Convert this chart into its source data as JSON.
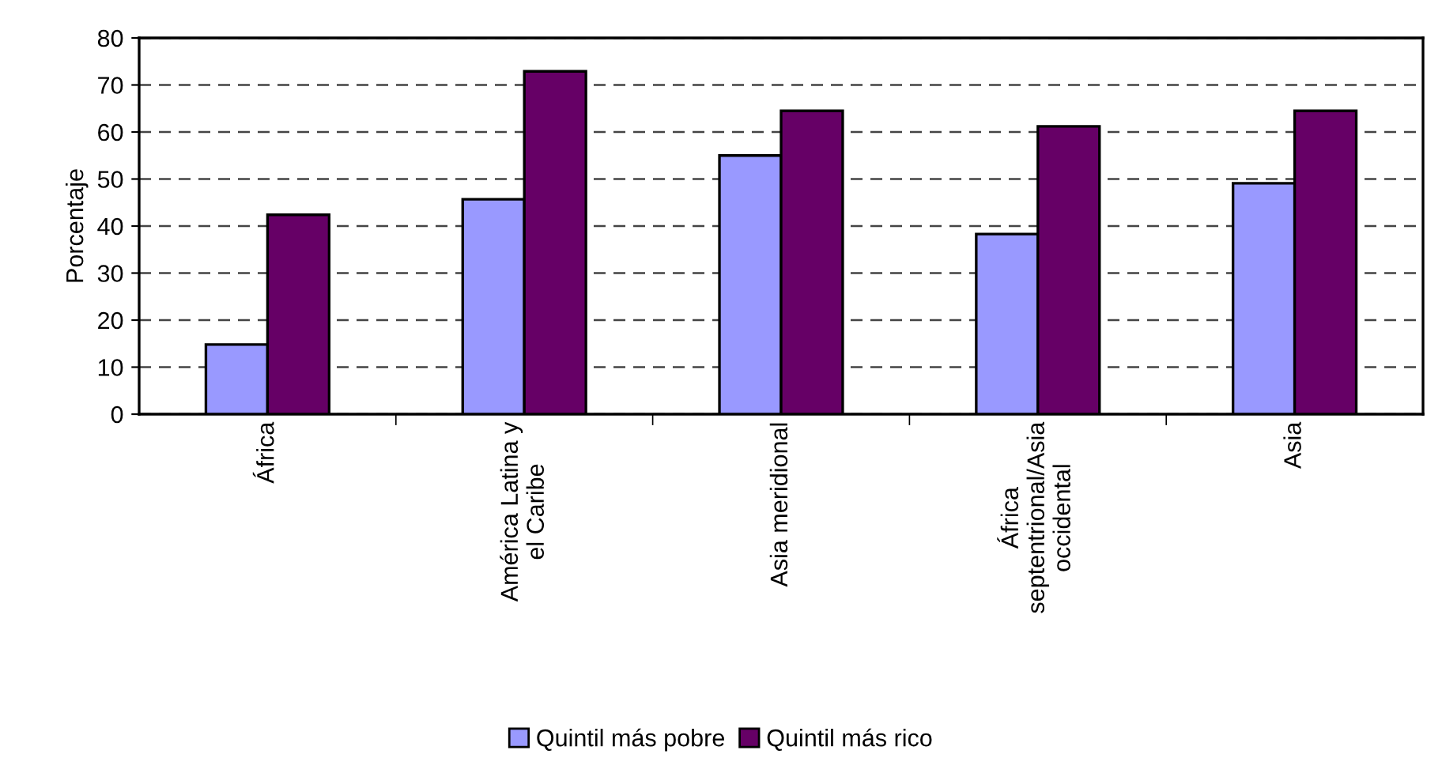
{
  "chart_data": {
    "type": "bar",
    "ylabel": "Porcentaje",
    "categories": [
      "África",
      "América Latina y\nel Caribe",
      "Asia meridional",
      "África\nseptentrional/Asia\noccidental",
      "Asia"
    ],
    "series": [
      {
        "name": "Quintil más pobre",
        "color": "#9999ff",
        "values": [
          14.8,
          45.7,
          55.0,
          38.3,
          49.1
        ]
      },
      {
        "name": "Quintil más rico",
        "color": "#660066",
        "values": [
          42.4,
          72.9,
          64.5,
          61.2,
          64.5
        ]
      }
    ],
    "ylim": [
      0,
      80
    ],
    "yticks": [
      0,
      10,
      20,
      30,
      40,
      50,
      60,
      70,
      80
    ],
    "grid": "y",
    "line_style": "dashed",
    "legend": "bottom"
  }
}
